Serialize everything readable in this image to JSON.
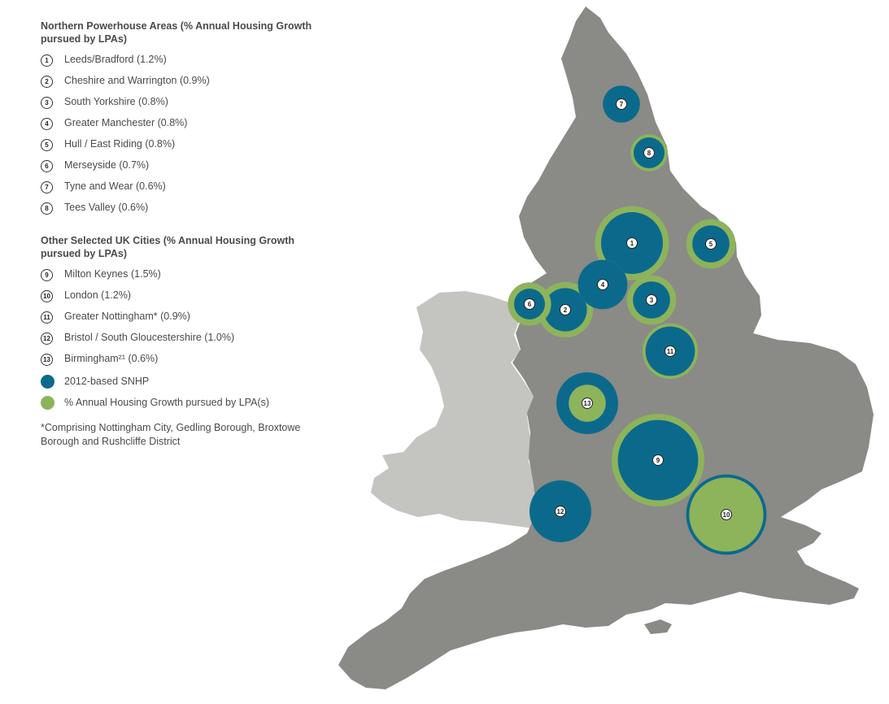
{
  "legend": {
    "northern_heading": "Northern Powerhouse Areas (% Annual Housing Growth pursued by LPAs)",
    "northern_items": [
      {
        "num": "1",
        "label": "Leeds/Bradford (1.2%)"
      },
      {
        "num": "2",
        "label": "Cheshire and Warrington (0.9%)"
      },
      {
        "num": "3",
        "label": "South Yorkshire (0.8%)"
      },
      {
        "num": "4",
        "label": "Greater Manchester (0.8%)"
      },
      {
        "num": "5",
        "label": "Hull / East Riding (0.8%)"
      },
      {
        "num": "6",
        "label": "Merseyside (0.7%)"
      },
      {
        "num": "7",
        "label": "Tyne and Wear (0.6%)"
      },
      {
        "num": "8",
        "label": "Tees Valley (0.6%)"
      }
    ],
    "other_heading": "Other Selected UK Cities (% Annual Housing Growth pursued by LPAs)",
    "other_items": [
      {
        "num": "9",
        "label": "Milton Keynes (1.5%)"
      },
      {
        "num": "10",
        "label": "London (1.2%)"
      },
      {
        "num": "11",
        "label": "Greater Nottingham* (0.9%)"
      },
      {
        "num": "12",
        "label": "Bristol / South Gloucestershire (1.0%)"
      },
      {
        "num": "13",
        "label": "Birmingham²¹ (0.6%)"
      }
    ],
    "key_snhp": "2012-based SNHP",
    "key_lpa": "% Annual Housing Growth pursued by LPA(s)",
    "footnote": "*Comprising Nottingham City, Gedling Borough, Broxtowe Borough and Rushcliffe District"
  },
  "colors": {
    "snhp": "#0b6a8c",
    "lpa": "#8db35b",
    "england": "#8a8a86",
    "wales": "#c4c4c0",
    "text": "#4a4a4a"
  },
  "markers": [
    {
      "num": "1",
      "snhp": 1.0,
      "lpa": 1.2,
      "snhp_on_top": true
    },
    {
      "num": "2",
      "snhp": 0.7,
      "lpa": 0.9,
      "snhp_on_top": true
    },
    {
      "num": "3",
      "snhp": 0.6,
      "lpa": 0.8,
      "snhp_on_top": true
    },
    {
      "num": "4",
      "snhp": 0.8,
      "lpa": 0.8,
      "snhp_on_top": true
    },
    {
      "num": "5",
      "snhp": 0.6,
      "lpa": 0.8,
      "snhp_on_top": true
    },
    {
      "num": "6",
      "snhp": 0.5,
      "lpa": 0.7,
      "snhp_on_top": true
    },
    {
      "num": "7",
      "snhp": 0.6,
      "lpa": 0.6,
      "snhp_on_top": true
    },
    {
      "num": "8",
      "snhp": 0.5,
      "lpa": 0.6,
      "snhp_on_top": true
    },
    {
      "num": "9",
      "snhp": 1.3,
      "lpa": 1.5,
      "snhp_on_top": true
    },
    {
      "num": "10",
      "snhp": 1.3,
      "lpa": 1.2,
      "snhp_on_top": false
    },
    {
      "num": "11",
      "snhp": 0.8,
      "lpa": 0.9,
      "snhp_on_top": true
    },
    {
      "num": "12",
      "snhp": 1.0,
      "lpa": 1.0,
      "snhp_on_top": true
    },
    {
      "num": "13",
      "snhp": 1.0,
      "lpa": 0.6,
      "snhp_on_top": false
    }
  ]
}
